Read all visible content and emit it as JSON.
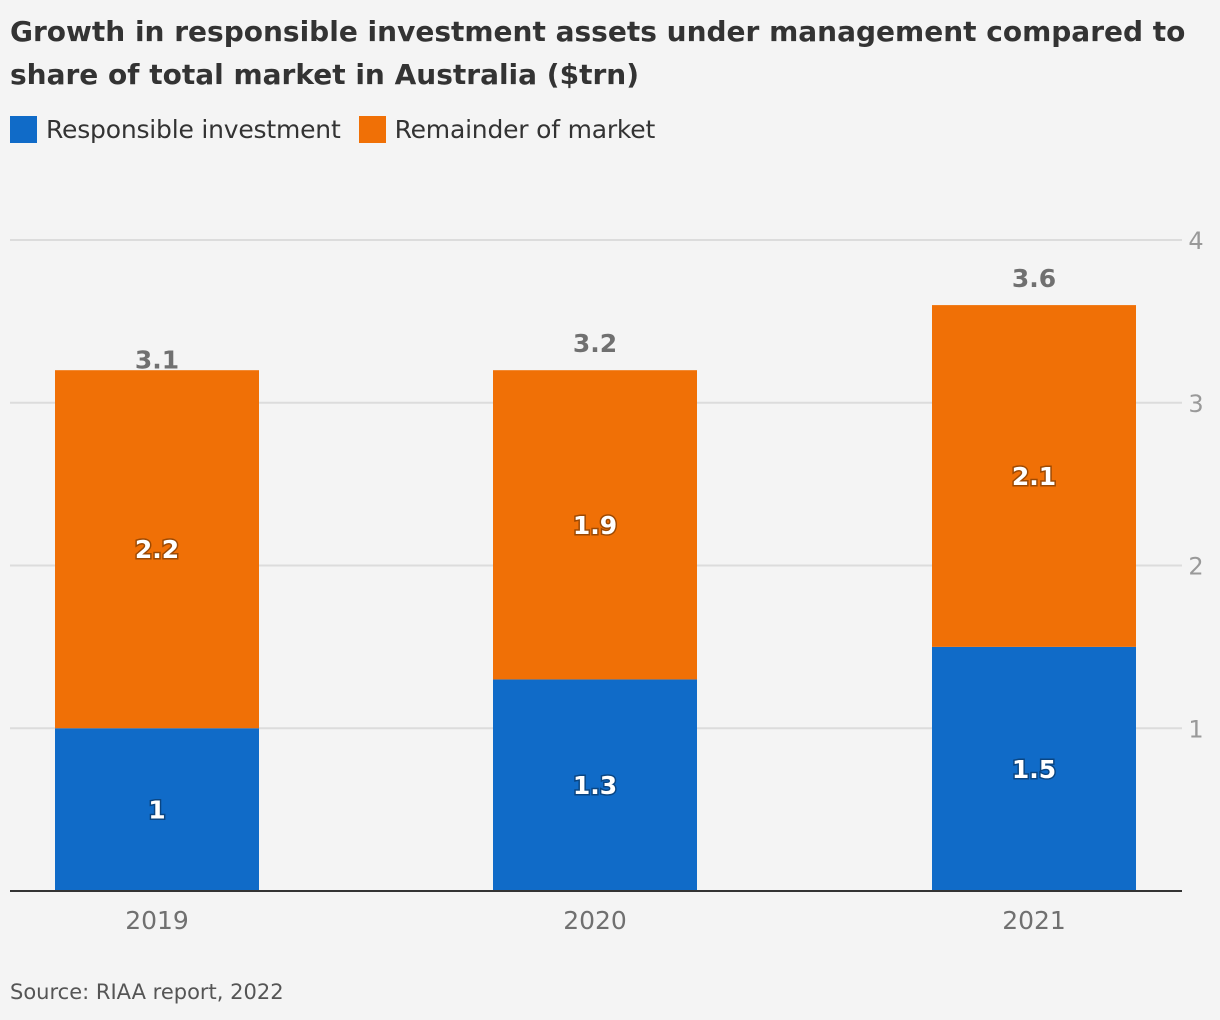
{
  "chart_data": {
    "type": "bar",
    "stacked": true,
    "title": "Growth in responsible investment assets under management compared to share of total market in Australia ($trn)",
    "categories": [
      "2019",
      "2020",
      "2021"
    ],
    "series": [
      {
        "name": "Responsible investment",
        "values": [
          1,
          1.3,
          1.5
        ],
        "labels": [
          "1",
          "1.3",
          "1.5"
        ],
        "color": "#106bc8"
      },
      {
        "name": "Remainder of market",
        "values": [
          2.2,
          1.9,
          2.1
        ],
        "labels": [
          "2.2",
          "1.9",
          "2.1"
        ],
        "color": "#f07006"
      }
    ],
    "totals": [
      3.1,
      3.2,
      3.6
    ],
    "total_labels": [
      "3.1",
      "3.2",
      "3.6"
    ],
    "ylim": [
      0,
      4
    ],
    "yticks": [
      1,
      2,
      3,
      4
    ],
    "ytick_labels": [
      "1",
      "2",
      "3",
      "4"
    ],
    "y_axis_side": "right",
    "grid": true,
    "legend_position": "top-left",
    "source": "Source: RIAA report, 2022"
  }
}
